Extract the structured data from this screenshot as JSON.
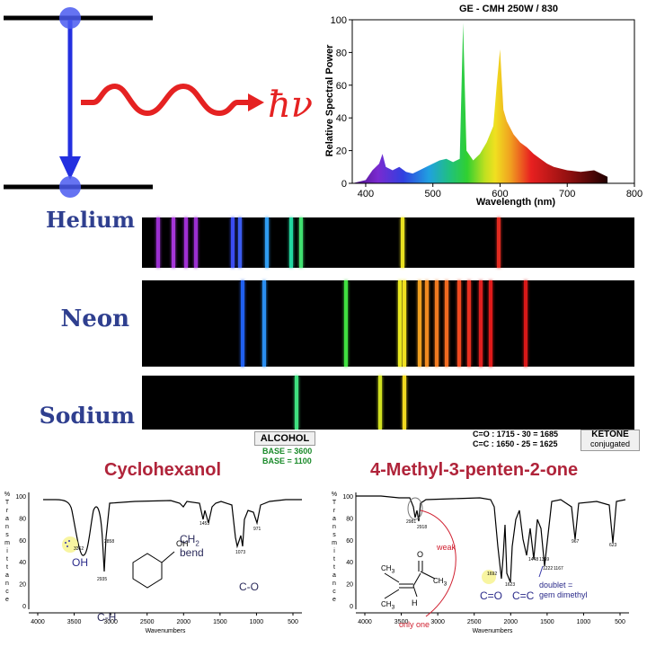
{
  "energy_diagram": {
    "photon_symbol": "ħν"
  },
  "spectrum_chart": {
    "title": "GE - CMH 250W / 830",
    "xlabel": "Wavelength (nm)",
    "ylabel": "Relative Spectral Power",
    "xticks": [
      "400",
      "500",
      "600",
      "700",
      "800"
    ],
    "yticks": [
      "0",
      "20",
      "40",
      "60",
      "80",
      "100"
    ]
  },
  "chart_data": {
    "type": "line",
    "title": "GE - CMH 250W / 830",
    "xlabel": "Wavelength (nm)",
    "ylabel": "Relative Spectral Power",
    "xlim": [
      380,
      800
    ],
    "ylim": [
      0,
      100
    ],
    "x": [
      380,
      400,
      410,
      420,
      425,
      430,
      440,
      450,
      460,
      470,
      480,
      490,
      500,
      510,
      520,
      530,
      540,
      545,
      550,
      560,
      570,
      580,
      590,
      595,
      600,
      605,
      610,
      620,
      630,
      640,
      650,
      660,
      670,
      680,
      690,
      700,
      720,
      740,
      760
    ],
    "values": [
      0,
      2,
      8,
      12,
      18,
      10,
      8,
      10,
      7,
      6,
      8,
      10,
      12,
      14,
      15,
      13,
      15,
      98,
      20,
      14,
      18,
      25,
      35,
      60,
      82,
      45,
      38,
      30,
      25,
      22,
      18,
      15,
      12,
      10,
      9,
      8,
      7,
      8,
      4
    ],
    "fill": "visible-spectrum-gradient"
  },
  "emission_spectra": [
    {
      "element": "Helium",
      "lines": [
        {
          "pos": 0.03,
          "color": "#9b30d0"
        },
        {
          "pos": 0.06,
          "color": "#a536d8"
        },
        {
          "pos": 0.085,
          "color": "#a02fd3"
        },
        {
          "pos": 0.105,
          "color": "#9a2fd0"
        },
        {
          "pos": 0.18,
          "color": "#3b4cf0"
        },
        {
          "pos": 0.195,
          "color": "#3b5cf0"
        },
        {
          "pos": 0.25,
          "color": "#2f9cf0"
        },
        {
          "pos": 0.3,
          "color": "#22d6a0"
        },
        {
          "pos": 0.32,
          "color": "#40e070"
        },
        {
          "pos": 0.525,
          "color": "#e8e020"
        },
        {
          "pos": 0.72,
          "color": "#e02a20"
        }
      ]
    },
    {
      "element": "Neon",
      "lines": [
        {
          "pos": 0.2,
          "color": "#2060f0"
        },
        {
          "pos": 0.245,
          "color": "#2a8ef0"
        },
        {
          "pos": 0.41,
          "color": "#40e040"
        },
        {
          "pos": 0.52,
          "color": "#e8e820"
        },
        {
          "pos": 0.53,
          "color": "#f0e020"
        },
        {
          "pos": 0.56,
          "color": "#f0a020"
        },
        {
          "pos": 0.575,
          "color": "#f08a20"
        },
        {
          "pos": 0.595,
          "color": "#f07a20"
        },
        {
          "pos": 0.615,
          "color": "#f06a20"
        },
        {
          "pos": 0.64,
          "color": "#f04a20"
        },
        {
          "pos": 0.66,
          "color": "#e83020"
        },
        {
          "pos": 0.685,
          "color": "#e02020"
        },
        {
          "pos": 0.705,
          "color": "#e01a1a"
        },
        {
          "pos": 0.775,
          "color": "#d81818"
        }
      ]
    },
    {
      "element": "Sodium",
      "lines": [
        {
          "pos": 0.31,
          "color": "#40e080"
        },
        {
          "pos": 0.48,
          "color": "#d0e020"
        },
        {
          "pos": 0.53,
          "color": "#f0d820"
        }
      ]
    }
  ],
  "ir_left": {
    "title": "Cyclohexanol",
    "class": "ALCOHOL",
    "base1": "BASE = 3600",
    "base2": "BASE = 1100",
    "xlabel": "Wavenumbers",
    "yaxis_letters": [
      "%",
      "T",
      "r",
      "a",
      "n",
      "s",
      "m",
      "i",
      "t",
      "t",
      "a",
      "n",
      "c",
      "e"
    ],
    "xticks": [
      "4000",
      "3500",
      "3000",
      "2500",
      "2000",
      "1500",
      "1000",
      "500"
    ],
    "yticks": [
      "100",
      "80",
      "60",
      "40",
      "20",
      "0"
    ],
    "peaks": [
      "3362",
      "2935",
      "2858",
      "1453",
      "1073",
      "971"
    ],
    "labels": {
      "oh": "OH",
      "ch": "C-H",
      "ch2": "CH",
      "ch2sub": "2",
      "bend": "bend",
      "co": "C-O",
      "mol_oh": "OH"
    }
  },
  "ir_right": {
    "title": "4-Methyl-3-penten-2-one",
    "line1": "C=O : 1715 - 30 = 1685",
    "line2": "C=C : 1650 - 25 = 1625",
    "class": "KETONE",
    "class_sub": "conjugated",
    "xlabel": "Wavenumbers",
    "yaxis_letters": [
      "%",
      "T",
      "r",
      "a",
      "n",
      "s",
      "m",
      "i",
      "t",
      "t",
      "a",
      "n",
      "c",
      "e"
    ],
    "xticks": [
      "4000",
      "3500",
      "3000",
      "2500",
      "2000",
      "1500",
      "1000",
      "500"
    ],
    "yticks": [
      "100",
      "80",
      "60",
      "40",
      "20",
      "0"
    ],
    "peaks": [
      "2981",
      "2918",
      "1692",
      "1623",
      "1448",
      "1359",
      "1222",
      "1167",
      "967",
      "623"
    ],
    "labels": {
      "weak": "weak",
      "only_one": "only one",
      "co": "C=O",
      "cc": "C=C",
      "doublet": "doublet =",
      "gem": "gem dimethyl",
      "mol_o": "O",
      "mol_h": "H",
      "mol_c": "C",
      "mol_ch3a": "CH",
      "mol_ch3b": "CH",
      "mol_ch3c": "CH",
      "mol_3": "3"
    }
  }
}
